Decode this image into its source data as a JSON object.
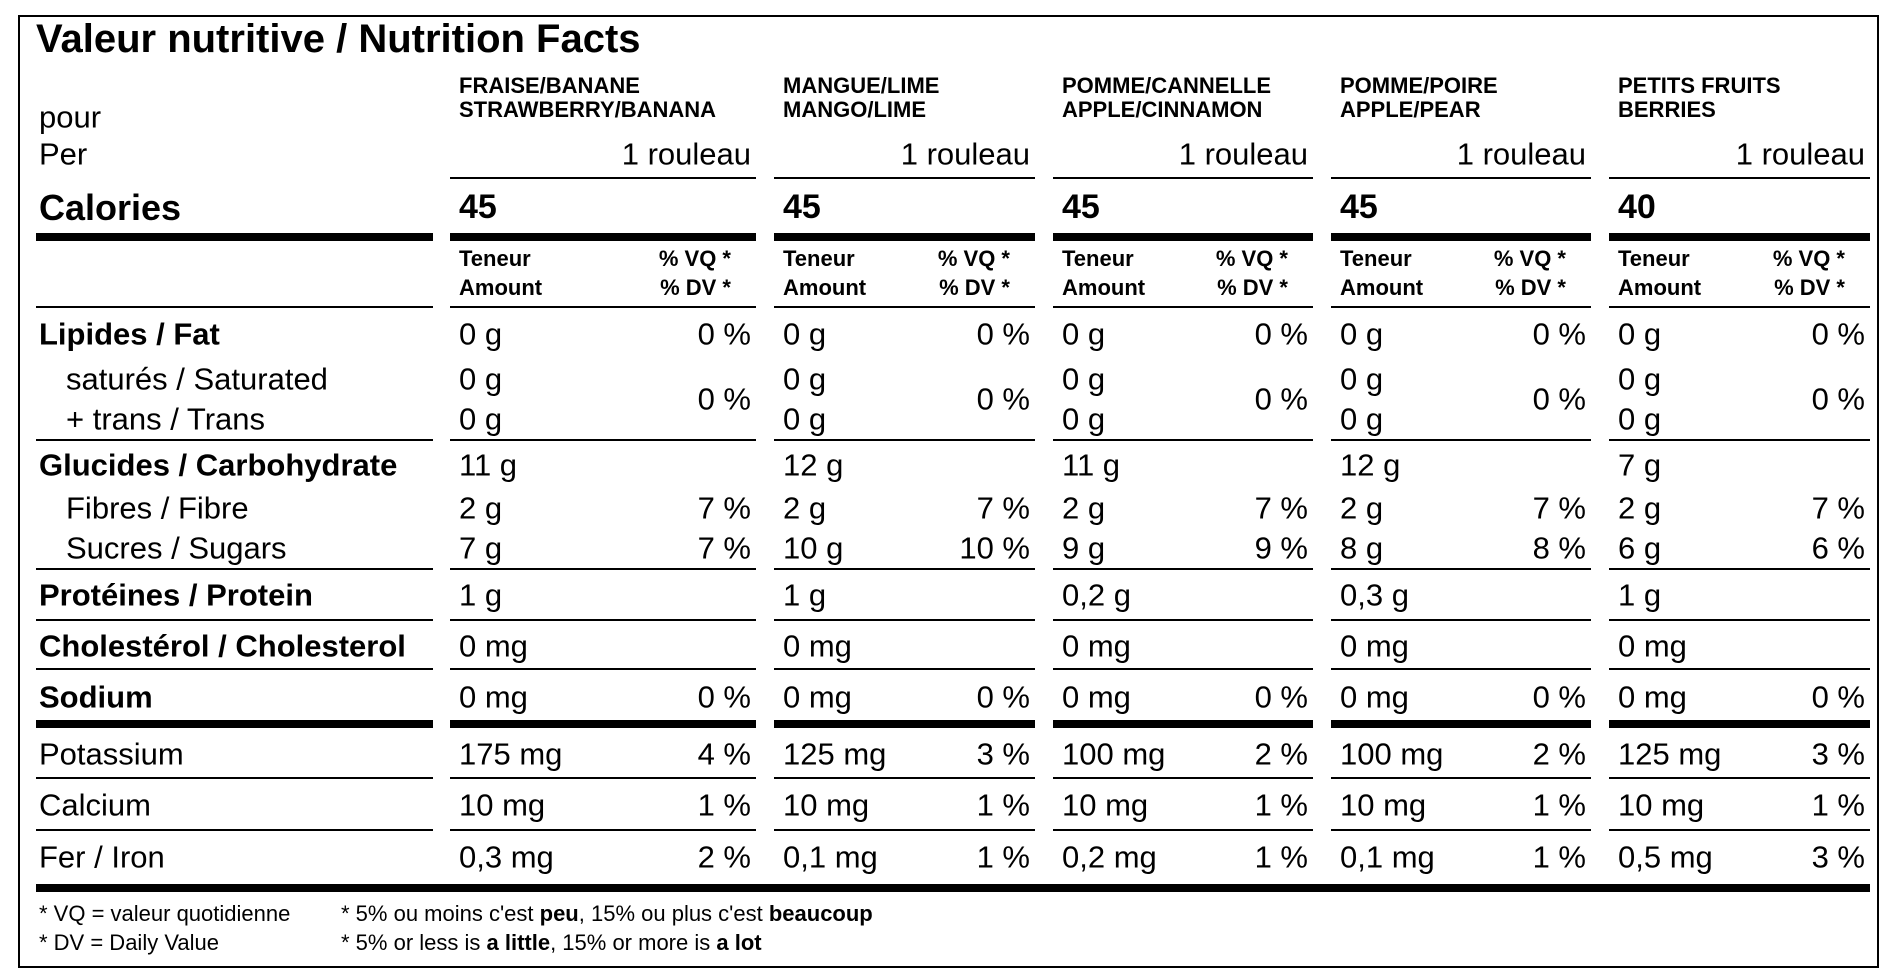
{
  "title": "Valeur nutritive / Nutrition Facts",
  "serving_label": {
    "fr": "pour",
    "en": "Per"
  },
  "column_header": {
    "amount_fr": "Teneur",
    "amount_en": "Amount",
    "dv_fr": "% VQ *",
    "dv_en": "% DV *"
  },
  "labels": {
    "calories": "Calories",
    "fat": "Lipides / Fat",
    "saturated": "saturés / Saturated",
    "trans": "+ trans / Trans",
    "carbohydrate": "Glucides / Carbohydrate",
    "fibre": "Fibres / Fibre",
    "sugars": "Sucres / Sugars",
    "protein": "Protéines / Protein",
    "cholesterol": "Cholestérol / Cholesterol",
    "sodium": "Sodium",
    "potassium": "Potassium",
    "calcium": "Calcium",
    "iron": "Fer / Iron"
  },
  "products": [
    {
      "name_fr": "FRAISE/BANANE",
      "name_en": "STRAWBERRY/BANANA",
      "serving": "1 rouleau",
      "calories": "45",
      "fat": "0 g",
      "fat_dv": "0 %",
      "saturated": "0 g",
      "trans": "0 g",
      "saturated_trans_dv": "0 %",
      "carbohydrate": "11 g",
      "fibre": "2 g",
      "fibre_dv": "7 %",
      "sugars": "7 g",
      "sugars_dv": "7 %",
      "protein": "1 g",
      "cholesterol": "0 mg",
      "sodium": "0 mg",
      "sodium_dv": "0 %",
      "potassium": "175 mg",
      "potassium_dv": "4 %",
      "calcium": "10 mg",
      "calcium_dv": "1 %",
      "iron": "0,3 mg",
      "iron_dv": "2 %"
    },
    {
      "name_fr": "MANGUE/LIME",
      "name_en": "MANGO/LIME",
      "serving": "1 rouleau",
      "calories": "45",
      "fat": "0 g",
      "fat_dv": "0 %",
      "saturated": "0 g",
      "trans": "0 g",
      "saturated_trans_dv": "0 %",
      "carbohydrate": "12 g",
      "fibre": "2 g",
      "fibre_dv": "7 %",
      "sugars": "10 g",
      "sugars_dv": "10 %",
      "protein": "1 g",
      "cholesterol": "0 mg",
      "sodium": "0 mg",
      "sodium_dv": "0 %",
      "potassium": "125 mg",
      "potassium_dv": "3 %",
      "calcium": "10 mg",
      "calcium_dv": "1 %",
      "iron": "0,1 mg",
      "iron_dv": "1 %"
    },
    {
      "name_fr": "POMME/CANNELLE",
      "name_en": "APPLE/CINNAMON",
      "serving": "1 rouleau",
      "calories": "45",
      "fat": "0 g",
      "fat_dv": "0 %",
      "saturated": "0 g",
      "trans": "0 g",
      "saturated_trans_dv": "0 %",
      "carbohydrate": "11 g",
      "fibre": "2 g",
      "fibre_dv": "7 %",
      "sugars": "9 g",
      "sugars_dv": "9 %",
      "protein": "0,2 g",
      "cholesterol": "0 mg",
      "sodium": "0 mg",
      "sodium_dv": "0 %",
      "potassium": "100 mg",
      "potassium_dv": "2 %",
      "calcium": "10 mg",
      "calcium_dv": "1 %",
      "iron": "0,2 mg",
      "iron_dv": "1 %"
    },
    {
      "name_fr": "POMME/POIRE",
      "name_en": "APPLE/PEAR",
      "serving": "1 rouleau",
      "calories": "45",
      "fat": "0 g",
      "fat_dv": "0 %",
      "saturated": "0 g",
      "trans": "0 g",
      "saturated_trans_dv": "0 %",
      "carbohydrate": "12 g",
      "fibre": "2 g",
      "fibre_dv": "7 %",
      "sugars": "8 g",
      "sugars_dv": "8 %",
      "protein": "0,3 g",
      "cholesterol": "0 mg",
      "sodium": "0 mg",
      "sodium_dv": "0 %",
      "potassium": "100 mg",
      "potassium_dv": "2 %",
      "calcium": "10 mg",
      "calcium_dv": "1 %",
      "iron": "0,1 mg",
      "iron_dv": "1 %"
    },
    {
      "name_fr": "PETITS FRUITS",
      "name_en": "BERRIES",
      "serving": "1 rouleau",
      "calories": "40",
      "fat": "0 g",
      "fat_dv": "0 %",
      "saturated": "0 g",
      "trans": "0 g",
      "saturated_trans_dv": "0 %",
      "carbohydrate": "7 g",
      "fibre": "2 g",
      "fibre_dv": "7 %",
      "sugars": "6 g",
      "sugars_dv": "6 %",
      "protein": "1 g",
      "cholesterol": "0 mg",
      "sodium": "0 mg",
      "sodium_dv": "0 %",
      "potassium": "125 mg",
      "potassium_dv": "3 %",
      "calcium": "10 mg",
      "calcium_dv": "1 %",
      "iron": "0,5 mg",
      "iron_dv": "3 %"
    }
  ],
  "footnotes": {
    "vq": "* VQ = valeur quotidienne",
    "dv": "* DV = Daily Value",
    "fr": [
      "* 5% ou moins c'est ",
      "peu",
      ", 15% ou plus c'est ",
      "beaucoup"
    ],
    "en": [
      "* 5% or less is ",
      "a little",
      ", 15% or more is ",
      "a lot"
    ]
  }
}
